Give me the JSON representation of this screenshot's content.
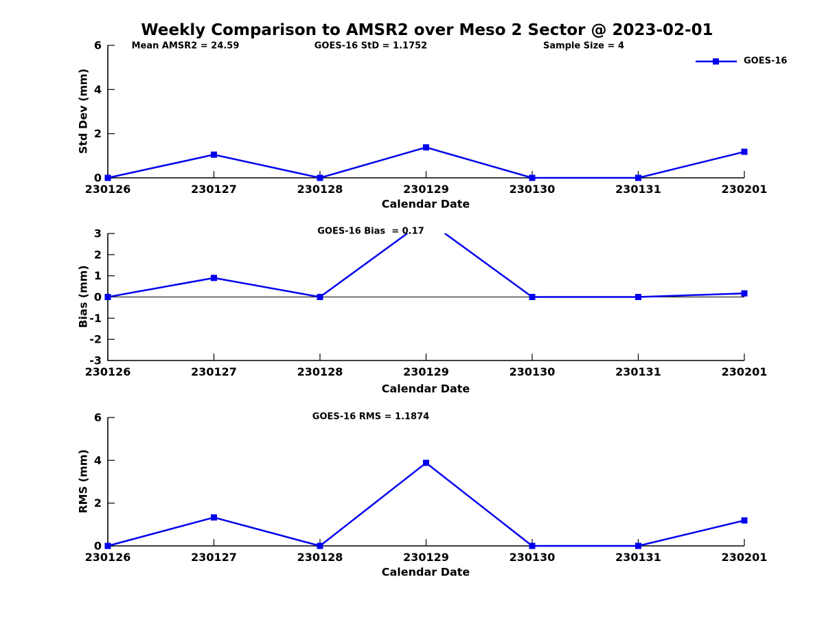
{
  "header": {
    "title": "Weekly Comparison to AMSR2 over Meso 2 Sector @ 2023-02-01",
    "stats": [
      "Mean AMSR2 = 24.59",
      "GOES-16 StD = 1.1752",
      "Sample Size = 4"
    ]
  },
  "legend": {
    "label": "GOES-16"
  },
  "colors": {
    "line": "#0000ee",
    "axis": "#000000",
    "text": "#000000",
    "background": "#ffffff"
  },
  "chart_data": [
    {
      "type": "line",
      "subplot": "std_dev",
      "x": [
        "230126",
        "230127",
        "230128",
        "230129",
        "230130",
        "230131",
        "230201"
      ],
      "series": [
        {
          "name": "GOES-16",
          "color": "#0000ee",
          "marker": "square",
          "values": [
            0,
            1.05,
            0,
            1.38,
            0,
            0,
            1.18
          ]
        }
      ],
      "xlabel": "Calendar Date",
      "ylabel": "Std Dev (mm)",
      "ylim": [
        0,
        6
      ],
      "yticks": [
        0,
        2,
        4,
        6
      ],
      "grid": false,
      "zero_line": false,
      "annotation": null,
      "legend_position": "top-right"
    },
    {
      "type": "line",
      "subplot": "bias",
      "x": [
        "230126",
        "230127",
        "230128",
        "230129",
        "230130",
        "230131",
        "230201"
      ],
      "series": [
        {
          "name": "GOES-16",
          "color": "#0000ee",
          "marker": "square",
          "values": [
            0,
            0.9,
            0,
            3.65,
            0,
            0,
            0.17
          ]
        }
      ],
      "xlabel": "Calendar Date",
      "ylabel": "Bias (mm)",
      "ylim": [
        -3,
        3
      ],
      "yticks": [
        -3,
        -2,
        -1,
        0,
        1,
        2,
        3
      ],
      "grid": false,
      "zero_line": true,
      "annotation": "GOES-16 Bias  = 0.17",
      "legend_position": "none"
    },
    {
      "type": "line",
      "subplot": "rms",
      "x": [
        "230126",
        "230127",
        "230128",
        "230129",
        "230130",
        "230131",
        "230201"
      ],
      "series": [
        {
          "name": "GOES-16",
          "color": "#0000ee",
          "marker": "square",
          "values": [
            0,
            1.33,
            0,
            3.88,
            0,
            0,
            1.19
          ]
        }
      ],
      "xlabel": "Calendar Date",
      "ylabel": "RMS (mm)",
      "ylim": [
        0,
        6
      ],
      "yticks": [
        0,
        2,
        4,
        6
      ],
      "grid": false,
      "zero_line": false,
      "annotation": "GOES-16 RMS = 1.1874",
      "legend_position": "none"
    }
  ]
}
